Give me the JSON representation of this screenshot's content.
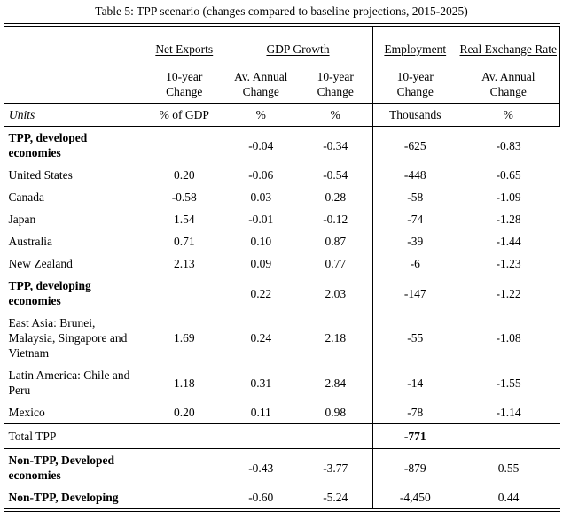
{
  "title": "Table 5: TPP scenario (changes compared to baseline projections, 2015-2025)",
  "colors": {
    "text": "#000000",
    "background": "#ffffff",
    "border": "#000000"
  },
  "columns": {
    "groups": [
      {
        "label": "Net Exports",
        "span": 1
      },
      {
        "label": "GDP Growth",
        "span": 2
      },
      {
        "label": "Employment",
        "span": 1
      },
      {
        "label": "Real Exchange Rate",
        "span": 1
      }
    ],
    "subheaders": [
      "10-year\nChange",
      "Av. Annual\nChange",
      "10-year\nChange",
      "10-year\nChange",
      "Av. Annual\nChange"
    ],
    "units_label": "Units",
    "units": [
      "% of GDP",
      "%",
      "%",
      "Thousands",
      "%"
    ]
  },
  "rows": [
    {
      "label": "TPP, developed economies",
      "bold": true,
      "values": [
        "",
        "-0.04",
        "-0.34",
        "-625",
        "-0.83"
      ]
    },
    {
      "label": "United States",
      "bold": false,
      "values": [
        "0.20",
        "-0.06",
        "-0.54",
        "-448",
        "-0.65"
      ]
    },
    {
      "label": "Canada",
      "bold": false,
      "values": [
        "-0.58",
        "0.03",
        "0.28",
        "-58",
        "-1.09"
      ]
    },
    {
      "label": "Japan",
      "bold": false,
      "values": [
        "1.54",
        "-0.01",
        "-0.12",
        "-74",
        "-1.28"
      ]
    },
    {
      "label": "Australia",
      "bold": false,
      "values": [
        "0.71",
        "0.10",
        "0.87",
        "-39",
        "-1.44"
      ]
    },
    {
      "label": "New Zealand",
      "bold": false,
      "values": [
        "2.13",
        "0.09",
        "0.77",
        "-6",
        "-1.23"
      ]
    },
    {
      "label": "TPP, developing economies",
      "bold": true,
      "values": [
        "",
        "0.22",
        "2.03",
        "-147",
        "-1.22"
      ]
    },
    {
      "label": "East Asia: Brunei, Malaysia, Singapore and Vietnam",
      "bold": false,
      "values": [
        "1.69",
        "0.24",
        "2.18",
        "-55",
        "-1.08"
      ]
    },
    {
      "label": "Latin America: Chile and Peru",
      "bold": false,
      "values": [
        "1.18",
        "0.31",
        "2.84",
        "-14",
        "-1.55"
      ]
    },
    {
      "label": "Mexico",
      "bold": false,
      "values": [
        "0.20",
        "0.11",
        "0.98",
        "-78",
        "-1.14"
      ]
    },
    {
      "label": "Total TPP",
      "bold": false,
      "rule": true,
      "bold_values": [
        3
      ],
      "values": [
        "",
        "",
        "",
        "-771",
        ""
      ]
    },
    {
      "label": "Non-TPP, Developed economies",
      "bold": true,
      "values": [
        "",
        "-0.43",
        "-3.77",
        "-879",
        "0.55"
      ]
    },
    {
      "label": "Non-TPP, Developing",
      "bold": true,
      "values": [
        "",
        "-0.60",
        "-5.24",
        "-4,450",
        "0.44"
      ]
    }
  ]
}
